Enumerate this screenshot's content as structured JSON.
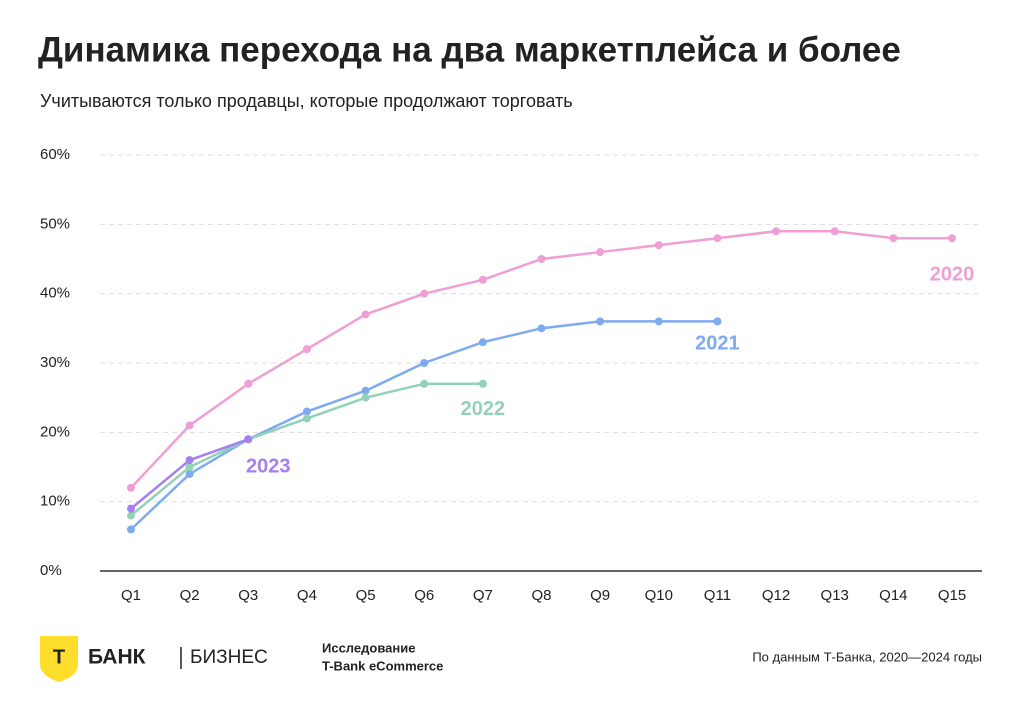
{
  "chart_data": {
    "type": "line",
    "title": "Динамика перехода на два маркетплейса и более",
    "subtitle": "Учитываются только продавцы, которые продолжают торговать",
    "categories": [
      "Q1",
      "Q2",
      "Q3",
      "Q4",
      "Q5",
      "Q6",
      "Q7",
      "Q8",
      "Q9",
      "Q10",
      "Q11",
      "Q12",
      "Q13",
      "Q14",
      "Q15"
    ],
    "series": [
      {
        "name": "2020",
        "color": "#ef9fd4",
        "values": [
          12,
          21,
          27,
          32,
          37,
          40,
          42,
          45,
          46,
          47,
          48,
          49,
          49,
          48,
          48
        ]
      },
      {
        "name": "2021",
        "color": "#7eabf0",
        "values": [
          6,
          14,
          19,
          23,
          26,
          30,
          33,
          35,
          36,
          36,
          36,
          null,
          null,
          null,
          null
        ]
      },
      {
        "name": "2022",
        "color": "#93d2b6",
        "values": [
          8,
          15,
          19,
          22,
          25,
          27,
          27,
          null,
          null,
          null,
          null,
          null,
          null,
          null,
          null
        ]
      },
      {
        "name": "2023",
        "color": "#a47ff0",
        "values": [
          9,
          16,
          19,
          null,
          null,
          null,
          null,
          null,
          null,
          null,
          null,
          null,
          null,
          null,
          null
        ]
      }
    ],
    "ylim": [
      0,
      60
    ],
    "yticks": [
      {
        "value": 0,
        "label": "0%"
      },
      {
        "value": 10,
        "label": "10%"
      },
      {
        "value": 20,
        "label": "20%"
      },
      {
        "value": 30,
        "label": "30%"
      },
      {
        "value": 40,
        "label": "40%"
      },
      {
        "value": 50,
        "label": "50%"
      },
      {
        "value": 60,
        "label": "60%"
      }
    ],
    "grid": true
  },
  "footer": {
    "logo_letter": "Т",
    "brand": "БАНК",
    "division": "БИЗНЕС",
    "study_line1": "Исследование",
    "study_line2": "T-Bank eCommerce",
    "source": "По данным Т-Банка, 2020—2024 годы"
  }
}
